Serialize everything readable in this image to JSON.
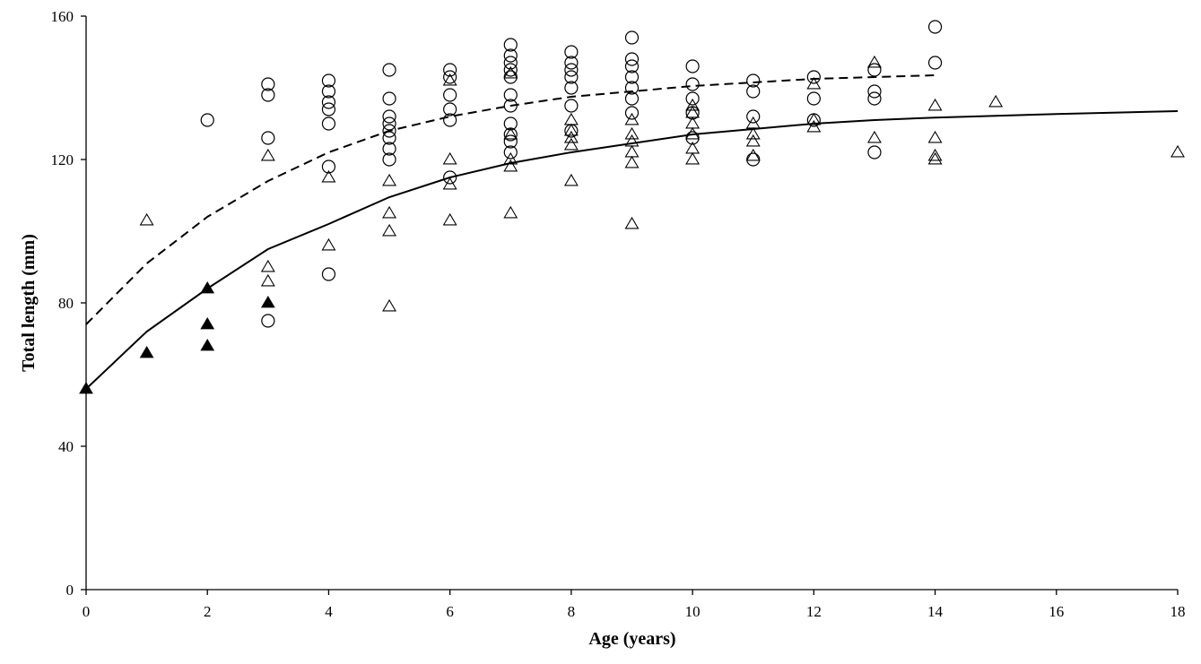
{
  "chart_data": {
    "type": "scatter",
    "xlabel": "Age (years)",
    "ylabel": "Total length (mm)",
    "xlim": [
      0,
      18
    ],
    "ylim": [
      0,
      160
    ],
    "xticks": [
      0,
      2,
      4,
      6,
      8,
      10,
      12,
      14,
      16,
      18
    ],
    "yticks": [
      0,
      40,
      80,
      120,
      160
    ],
    "grid": false,
    "legend": "none",
    "series": [
      {
        "marker": "open-circle",
        "color": "#000000",
        "points": [
          [
            2,
            131
          ],
          [
            3,
            141
          ],
          [
            3,
            138
          ],
          [
            3,
            126
          ],
          [
            3,
            75
          ],
          [
            4,
            142
          ],
          [
            4,
            139
          ],
          [
            4,
            136
          ],
          [
            4,
            134
          ],
          [
            4,
            130
          ],
          [
            4,
            118
          ],
          [
            4,
            88
          ],
          [
            5,
            145
          ],
          [
            5,
            137
          ],
          [
            5,
            132
          ],
          [
            5,
            130
          ],
          [
            5,
            128
          ],
          [
            5,
            126
          ],
          [
            5,
            123
          ],
          [
            5,
            120
          ],
          [
            6,
            145
          ],
          [
            6,
            143
          ],
          [
            6,
            138
          ],
          [
            6,
            134
          ],
          [
            6,
            131
          ],
          [
            6,
            115
          ],
          [
            7,
            152
          ],
          [
            7,
            149
          ],
          [
            7,
            147
          ],
          [
            7,
            145
          ],
          [
            7,
            143
          ],
          [
            7,
            138
          ],
          [
            7,
            135
          ],
          [
            7,
            130
          ],
          [
            7,
            127
          ],
          [
            7,
            125
          ],
          [
            7,
            122
          ],
          [
            8,
            150
          ],
          [
            8,
            147
          ],
          [
            8,
            145
          ],
          [
            8,
            143
          ],
          [
            8,
            140
          ],
          [
            8,
            135
          ],
          [
            8,
            128
          ],
          [
            9,
            154
          ],
          [
            9,
            148
          ],
          [
            9,
            146
          ],
          [
            9,
            143
          ],
          [
            9,
            140
          ],
          [
            9,
            137
          ],
          [
            9,
            133
          ],
          [
            10,
            146
          ],
          [
            10,
            141
          ],
          [
            10,
            137
          ],
          [
            10,
            133
          ],
          [
            10,
            126
          ],
          [
            11,
            142
          ],
          [
            11,
            139
          ],
          [
            11,
            132
          ],
          [
            11,
            120
          ],
          [
            12,
            143
          ],
          [
            12,
            137
          ],
          [
            12,
            131
          ],
          [
            13,
            145
          ],
          [
            13,
            139
          ],
          [
            13,
            137
          ],
          [
            13,
            122
          ],
          [
            14,
            157
          ],
          [
            14,
            147
          ]
        ]
      },
      {
        "marker": "open-triangle",
        "color": "#000000",
        "points": [
          [
            1,
            103
          ],
          [
            3,
            121
          ],
          [
            3,
            90
          ],
          [
            3,
            86
          ],
          [
            4,
            115
          ],
          [
            4,
            96
          ],
          [
            5,
            114
          ],
          [
            5,
            105
          ],
          [
            5,
            100
          ],
          [
            5,
            79
          ],
          [
            6,
            142
          ],
          [
            6,
            120
          ],
          [
            6,
            113
          ],
          [
            6,
            103
          ],
          [
            7,
            144
          ],
          [
            7,
            127
          ],
          [
            7,
            120
          ],
          [
            7,
            118
          ],
          [
            7,
            105
          ],
          [
            8,
            131
          ],
          [
            8,
            128
          ],
          [
            8,
            126
          ],
          [
            8,
            124
          ],
          [
            8,
            114
          ],
          [
            9,
            131
          ],
          [
            9,
            127
          ],
          [
            9,
            125
          ],
          [
            9,
            122
          ],
          [
            9,
            119
          ],
          [
            9,
            102
          ],
          [
            10,
            135
          ],
          [
            10,
            133
          ],
          [
            10,
            130
          ],
          [
            10,
            127
          ],
          [
            10,
            123
          ],
          [
            10,
            120
          ],
          [
            11,
            130
          ],
          [
            11,
            127
          ],
          [
            11,
            125
          ],
          [
            11,
            121
          ],
          [
            12,
            141
          ],
          [
            12,
            131
          ],
          [
            12,
            129
          ],
          [
            13,
            147
          ],
          [
            13,
            126
          ],
          [
            14,
            135
          ],
          [
            14,
            126
          ],
          [
            14,
            121
          ],
          [
            14,
            120
          ],
          [
            15,
            136
          ],
          [
            18,
            122
          ]
        ]
      },
      {
        "marker": "filled-triangle",
        "color": "#000000",
        "points": [
          [
            0,
            56
          ],
          [
            1,
            66
          ],
          [
            2,
            84
          ],
          [
            2,
            74
          ],
          [
            2,
            68
          ],
          [
            3,
            80
          ]
        ]
      },
      {
        "line": "dashed",
        "color": "#000000",
        "points": [
          [
            0,
            74
          ],
          [
            1,
            91
          ],
          [
            2,
            104
          ],
          [
            3,
            114
          ],
          [
            4,
            122
          ],
          [
            5,
            128
          ],
          [
            6,
            132
          ],
          [
            7,
            135
          ],
          [
            8,
            137.5
          ],
          [
            9,
            139
          ],
          [
            10,
            140.5
          ],
          [
            11,
            141.5
          ],
          [
            12,
            142.5
          ],
          [
            13,
            143
          ],
          [
            14,
            143.5
          ]
        ]
      },
      {
        "line": "solid",
        "color": "#000000",
        "points": [
          [
            0,
            56
          ],
          [
            1,
            72
          ],
          [
            2,
            84
          ],
          [
            3,
            95
          ],
          [
            4,
            102
          ],
          [
            5,
            109.5
          ],
          [
            6,
            115
          ],
          [
            7,
            119
          ],
          [
            8,
            122
          ],
          [
            9,
            124.5
          ],
          [
            10,
            127
          ],
          [
            11,
            128.5
          ],
          [
            12,
            130
          ],
          [
            13,
            131
          ],
          [
            14,
            131.7
          ],
          [
            15,
            132.2
          ],
          [
            16,
            132.7
          ],
          [
            17,
            133.1
          ],
          [
            18,
            133.5
          ]
        ]
      }
    ]
  }
}
